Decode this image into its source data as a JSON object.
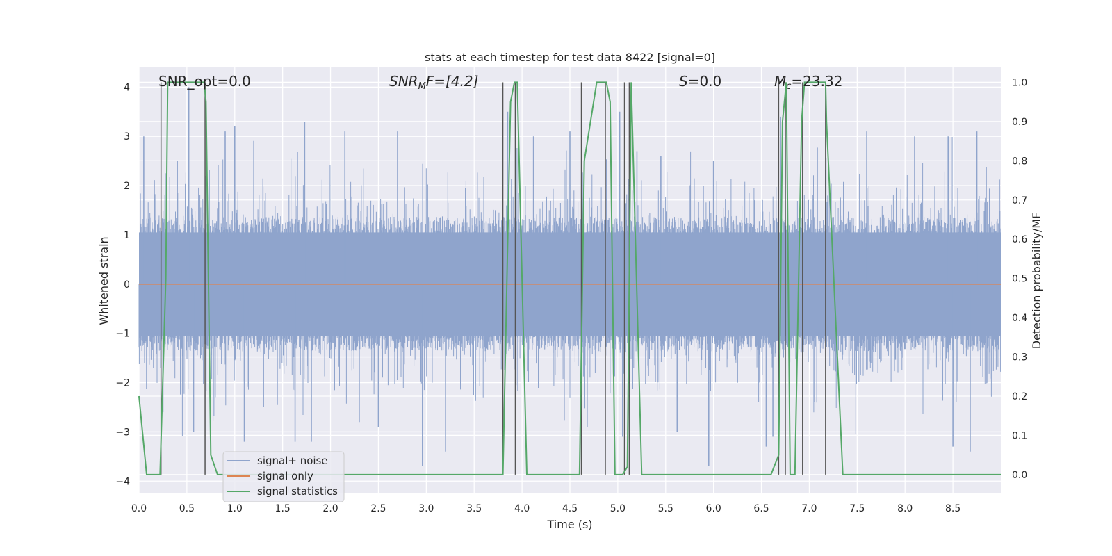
{
  "chart_data": {
    "type": "line",
    "title": "stats at each timestep for test data 8422 [signal=0]",
    "xlabel": "Time (s)",
    "ylabel": "Whitened strain",
    "ylabel_right": "Detection probability/MF",
    "xlim": [
      0,
      9.0
    ],
    "ylim": [
      -4.25,
      4.4
    ],
    "ylim_right": [
      -0.048,
      1.038
    ],
    "x_ticks": [
      "0.0",
      "0.5",
      "1.0",
      "1.5",
      "2.0",
      "2.5",
      "3.0",
      "3.5",
      "4.0",
      "4.5",
      "5.0",
      "5.5",
      "6.0",
      "6.5",
      "7.0",
      "7.5",
      "8.0",
      "8.5"
    ],
    "y_ticks": [
      "4",
      "3",
      "2",
      "1",
      "0",
      "−1",
      "−2",
      "−3",
      "−4"
    ],
    "y_ticks_right": [
      "1.0",
      "0.9",
      "0.8",
      "0.7",
      "0.6",
      "0.5",
      "0.4",
      "0.3",
      "0.2",
      "0.1",
      "0.0"
    ],
    "grid": true,
    "legend_position": "lower-left",
    "annotations": {
      "snr_opt": "SNR_opt=0.0",
      "snr_mf_base": "SNR",
      "snr_mf_sub": "M",
      "snr_mf_rest": "F=[4.2]",
      "s_label": "S",
      "s_rest": "=0.0",
      "mc_base": "M",
      "mc_sub": "c",
      "mc_rest": "=23.32"
    },
    "series": [
      {
        "name": "signal+ noise",
        "color": "#8fa4cc",
        "kind": "noise_band",
        "y_range": [
          -3.7,
          4.0
        ],
        "peaks": [
          [
            0.05,
            3.0
          ],
          [
            0.25,
            -2.6
          ],
          [
            0.4,
            2.5
          ],
          [
            0.52,
            4.0
          ],
          [
            0.57,
            -3.0
          ],
          [
            0.7,
            2.2
          ],
          [
            0.9,
            3.1
          ],
          [
            1.0,
            3.2
          ],
          [
            1.1,
            -3.2
          ],
          [
            1.3,
            -2.5
          ],
          [
            1.63,
            -3.2
          ],
          [
            1.73,
            3.3
          ],
          [
            1.8,
            -3.2
          ],
          [
            2.15,
            3.1
          ],
          [
            2.3,
            -2.8
          ],
          [
            2.5,
            -2.9
          ],
          [
            2.7,
            3.1
          ],
          [
            2.96,
            -3.7
          ],
          [
            3.2,
            -3.4
          ],
          [
            3.85,
            3.5
          ],
          [
            4.12,
            3.0
          ],
          [
            4.5,
            3.1
          ],
          [
            4.68,
            -2.9
          ],
          [
            5.02,
            3.5
          ],
          [
            5.05,
            -3.1
          ],
          [
            5.2,
            2.7
          ],
          [
            5.45,
            2.6
          ],
          [
            5.62,
            -3.0
          ],
          [
            5.95,
            -3.7
          ],
          [
            6.0,
            2.5
          ],
          [
            6.55,
            -3.3
          ],
          [
            6.62,
            -3.1
          ],
          [
            6.7,
            3.4
          ],
          [
            7.6,
            3.1
          ],
          [
            8.1,
            3.0
          ],
          [
            8.45,
            3.0
          ],
          [
            8.5,
            -3.3
          ],
          [
            8.68,
            -3.4
          ],
          [
            8.75,
            3.1
          ]
        ]
      },
      {
        "name": "signal only",
        "color": "#dd8452",
        "x": [
          0,
          9.0
        ],
        "y": [
          0,
          0
        ]
      },
      {
        "name": "signal statistics",
        "color": "#55a868",
        "axis": "right",
        "x": [
          0,
          0.04,
          0.08,
          0.22,
          0.28,
          0.3,
          0.68,
          0.7,
          0.75,
          0.82,
          3.8,
          3.88,
          3.92,
          3.95,
          4.05,
          4.6,
          4.65,
          4.78,
          4.88,
          4.92,
          4.97,
          5.05,
          5.1,
          5.14,
          5.25,
          5.5,
          6.6,
          6.68,
          6.72,
          6.76,
          6.8,
          6.85,
          6.92,
          6.95,
          7.17,
          7.18,
          7.35,
          9.0
        ],
        "y": [
          0.2,
          0.1,
          0.0,
          0.0,
          0.5,
          1.0,
          1.0,
          0.95,
          0.05,
          0.0,
          0.0,
          0.95,
          1.0,
          1.0,
          0.0,
          0.0,
          0.8,
          1.0,
          1.0,
          0.95,
          0.0,
          0.0,
          0.02,
          1.0,
          0.0,
          0.0,
          0.0,
          0.05,
          0.9,
          1.0,
          0.0,
          0.0,
          0.9,
          1.0,
          1.0,
          0.9,
          0.0,
          0.0
        ]
      }
    ],
    "vertical_markers": {
      "color": "#555555",
      "x": [
        0.23,
        0.69,
        3.8,
        3.93,
        4.62,
        4.87,
        5.07,
        5.12,
        6.68,
        6.75,
        6.93,
        7.17
      ]
    }
  }
}
